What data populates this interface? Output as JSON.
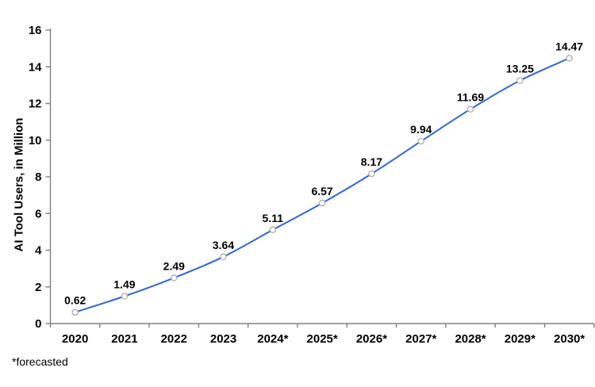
{
  "chart_data": {
    "type": "line",
    "title": "",
    "xlabel": "",
    "ylabel": "AI Tool Users, in Million",
    "note": "*forecasted",
    "categories": [
      "2020",
      "2021",
      "2022",
      "2023",
      "2024*",
      "2025*",
      "2026*",
      "2027*",
      "2028*",
      "2029*",
      "2030*"
    ],
    "values": [
      0.62,
      1.49,
      2.49,
      3.64,
      5.11,
      6.57,
      8.17,
      9.94,
      11.69,
      13.25,
      14.47
    ],
    "data_labels": [
      "0.62",
      "1.49",
      "2.49",
      "3.64",
      "5.11",
      "6.57",
      "8.17",
      "9.94",
      "11.69",
      "13.25",
      "14.47"
    ],
    "ylim": [
      0,
      16
    ],
    "ytick_step": 2,
    "yticks": [
      0,
      2,
      4,
      6,
      8,
      10,
      12,
      14,
      16
    ],
    "grid": false,
    "legend": "none",
    "line_style": "smooth",
    "marker": "open-circle",
    "colors": {
      "line": "#2e68d0",
      "marker_fill": "#ffffff",
      "marker_stroke": "#adadad",
      "axis": "#808080",
      "text": "#000000"
    }
  }
}
